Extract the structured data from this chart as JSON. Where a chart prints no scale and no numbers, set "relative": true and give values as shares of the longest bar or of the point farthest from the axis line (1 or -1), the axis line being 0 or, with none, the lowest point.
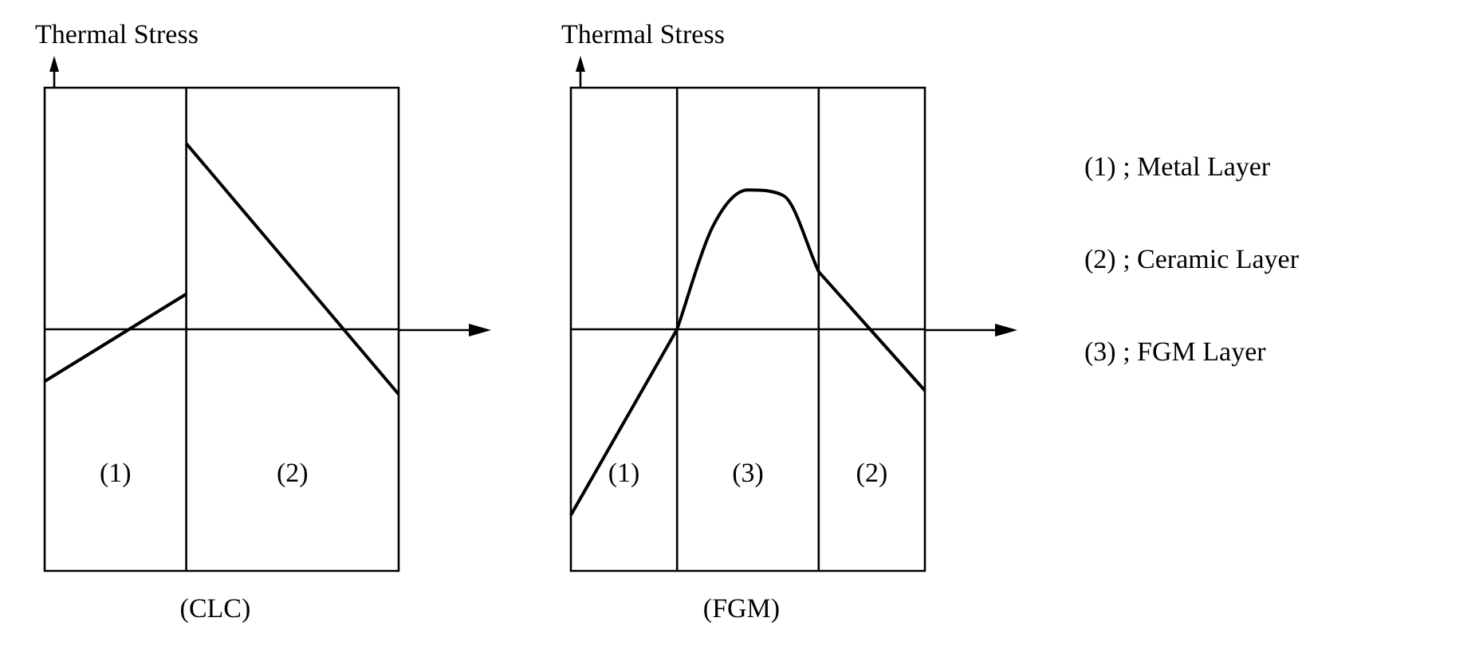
{
  "chart_data": [
    {
      "type": "line",
      "title": "(CLC)",
      "ylabel": "Thermal Stress",
      "relative": true,
      "categories": [
        null,
        null,
        null,
        null,
        null,
        null
      ],
      "series": [
        {
          "color": "#000000",
          "values": [
            -0.28,
            null,
            0.19,
            null,
            null,
            null
          ]
        },
        {
          "color": "#000000",
          "values": [
            null,
            null,
            1,
            null,
            null,
            -0.35
          ]
        }
      ],
      "annotations": [
        "(1)",
        "(2)"
      ]
    },
    {
      "type": "line",
      "title": "(FGM)",
      "ylabel": "Thermal Stress",
      "relative": true,
      "categories": [
        null,
        null,
        null,
        null,
        null,
        null,
        null,
        null,
        null,
        null,
        null
      ],
      "series": [
        {
          "color": "#000000",
          "values": [
            -1,
            null,
            null,
            0,
            null,
            null,
            null,
            null,
            null,
            null,
            null
          ]
        },
        {
          "color": "#000000",
          "values": [
            null,
            null,
            null,
            0,
            0.55,
            0.75,
            0.72,
            0.31,
            null,
            null,
            null
          ]
        },
        {
          "color": "#000000",
          "values": [
            null,
            null,
            null,
            null,
            null,
            null,
            null,
            0.31,
            null,
            null,
            -0.33
          ]
        }
      ],
      "annotations": [
        "(1)",
        "(3)",
        "(2)"
      ]
    },
    {
      "type": "other",
      "annotations": [
        "(1) ; Metal Layer",
        "(2) ; Ceramic Layer",
        "(3) ; FGM Layer"
      ]
    }
  ]
}
